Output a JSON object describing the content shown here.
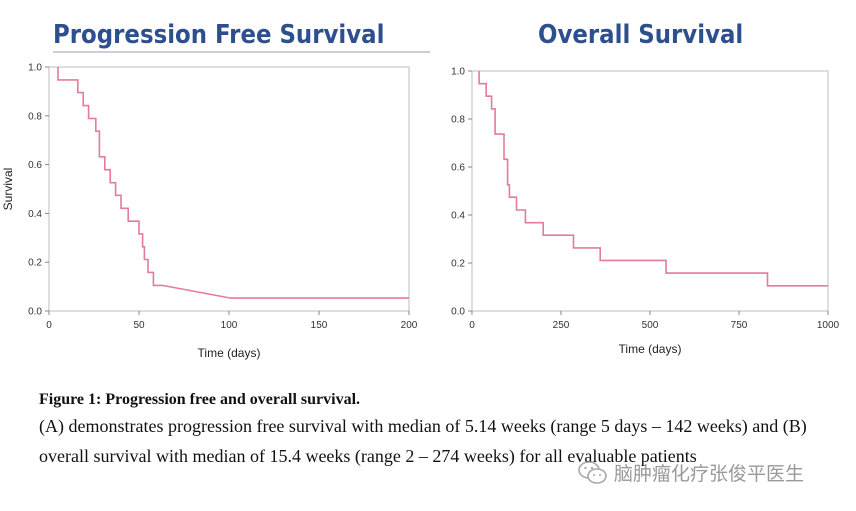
{
  "colors": {
    "curve": "#e57b96",
    "title": "#2e4f8f"
  },
  "chart_data": [
    {
      "type": "line",
      "step": true,
      "title": "Progression Free Survival",
      "xlabel": "Time (days)",
      "ylabel": "Survival",
      "xlim": [
        0,
        200
      ],
      "ylim": [
        0,
        1.0
      ],
      "xticks": [
        "0",
        "50",
        "100",
        "150",
        "200"
      ],
      "yticks": [
        "0.0",
        "0.2",
        "0.4",
        "0.6",
        "0.8",
        "1.0"
      ],
      "x": [
        5,
        5,
        16,
        16,
        19,
        19,
        22,
        22,
        26,
        26,
        28,
        28,
        31,
        31,
        34,
        34,
        37,
        37,
        40,
        40,
        44,
        44,
        50,
        50,
        52,
        52,
        53,
        53,
        55,
        55,
        58,
        58,
        63,
        63,
        101,
        101,
        200
      ],
      "y": [
        1.0,
        0.947,
        0.947,
        0.895,
        0.895,
        0.842,
        0.842,
        0.789,
        0.789,
        0.737,
        0.737,
        0.632,
        0.632,
        0.579,
        0.579,
        0.526,
        0.526,
        0.474,
        0.474,
        0.421,
        0.421,
        0.368,
        0.368,
        0.316,
        0.316,
        0.263,
        0.263,
        0.211,
        0.211,
        0.158,
        0.158,
        0.105,
        0.105,
        0.105,
        0.053,
        0.053,
        0.053
      ]
    },
    {
      "type": "line",
      "step": true,
      "title": "Overall Survival",
      "xlabel": "Time (days)",
      "ylabel": "",
      "xlim": [
        0,
        1000
      ],
      "ylim": [
        0,
        1.0
      ],
      "xticks": [
        "0",
        "250",
        "500",
        "750",
        "1000"
      ],
      "yticks": [
        "0.0",
        "0.2",
        "0.4",
        "0.6",
        "0.8",
        "1.0"
      ],
      "x": [
        20,
        20,
        40,
        40,
        55,
        55,
        65,
        65,
        90,
        90,
        100,
        100,
        105,
        105,
        125,
        125,
        150,
        150,
        200,
        200,
        285,
        285,
        360,
        360,
        545,
        545,
        830,
        830,
        1000
      ],
      "y": [
        1.0,
        0.947,
        0.947,
        0.895,
        0.895,
        0.842,
        0.842,
        0.737,
        0.737,
        0.632,
        0.632,
        0.526,
        0.526,
        0.474,
        0.474,
        0.421,
        0.421,
        0.368,
        0.368,
        0.316,
        0.316,
        0.263,
        0.263,
        0.211,
        0.211,
        0.158,
        0.158,
        0.105,
        0.105
      ]
    }
  ],
  "caption": {
    "title": "Figure 1: Progression free and overall survival.",
    "body": "(A) demonstrates progression free survival with median of 5.14 weeks (range 5 days – 142 weeks) and (B) overall survival with median of 15.4 weeks (range 2 – 274 weeks) for all evaluable patients"
  },
  "watermark": {
    "text": "脑肿瘤化疗张俊平医生",
    "icon": "wechat-icon"
  }
}
